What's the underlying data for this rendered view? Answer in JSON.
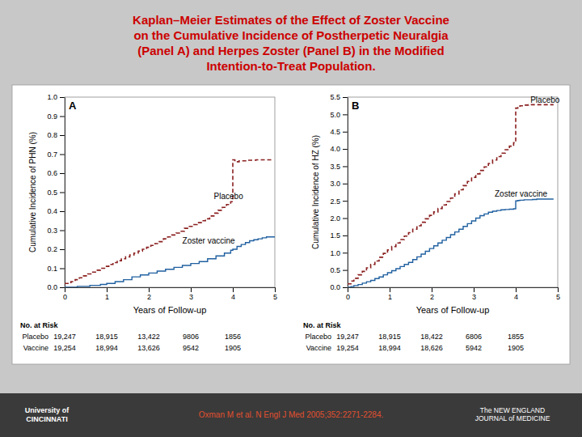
{
  "title": "Kaplan–Meier Estimates of the Effect of Zoster Vaccine\non the Cumulative Incidence of Postherpetic Neuralgia\n(Panel A) and Herpes Zoster (Panel B) in the Modified\nIntention-to-Treat Population.",
  "annotations": [
    {
      "text": "Oxman M et al. N Engl J Med 2005;352:2271-2284."
    },
    {
      "text": "University of\nCINCINNATI"
    },
    {
      "text": "The NEW ENGLAND\nJOURNAL of MEDICINE"
    }
  ],
  "chart_data": [
    {
      "type": "step",
      "xlabel": "Years of Follow-up",
      "ylabel": "Cumulative Incidence of PHN (%)",
      "xlim": [
        0,
        5
      ],
      "xticks": [
        0,
        1,
        2,
        3,
        4,
        5
      ],
      "ylim": [
        0,
        1.0
      ],
      "yticks": [
        {
          "value": 0.0,
          "label": "0.0"
        },
        0.1,
        0.2,
        0.3,
        0.4,
        0.5,
        0.6,
        0.7,
        0.8,
        0.9,
        {
          "value": 1.0,
          "label": "1.0"
        }
      ],
      "grid": false,
      "series": [
        {
          "color": "#8b2020",
          "line_style": "dashed",
          "x": [
            0,
            0.08,
            0.15,
            0.25,
            0.35,
            0.45,
            0.55,
            0.65,
            0.75,
            0.85,
            0.95,
            1.05,
            1.15,
            1.25,
            1.35,
            1.45,
            1.55,
            1.65,
            1.75,
            1.85,
            1.95,
            2.05,
            2.15,
            2.25,
            2.35,
            2.45,
            2.55,
            2.65,
            2.75,
            2.85,
            2.95,
            3.05,
            3.15,
            3.25,
            3.35,
            3.45,
            3.55,
            3.65,
            3.75,
            3.85,
            3.95,
            4.0,
            4.05,
            4.15,
            4.25,
            4.35,
            4.45,
            4.55,
            4.65,
            4.75,
            4.85,
            4.95
          ],
          "values": [
            0.02,
            0.025,
            0.03,
            0.04,
            0.05,
            0.06,
            0.07,
            0.08,
            0.09,
            0.1,
            0.11,
            0.12,
            0.13,
            0.14,
            0.15,
            0.16,
            0.17,
            0.18,
            0.19,
            0.2,
            0.21,
            0.22,
            0.23,
            0.24,
            0.255,
            0.265,
            0.275,
            0.285,
            0.295,
            0.31,
            0.32,
            0.33,
            0.34,
            0.35,
            0.36,
            0.375,
            0.39,
            0.405,
            0.42,
            0.435,
            0.45,
            0.67,
            0.66,
            0.665,
            0.665,
            0.668,
            0.668,
            0.67,
            0.67,
            0.67,
            0.67,
            0.67
          ]
        },
        {
          "color": "#2060a0",
          "line_style": "solid",
          "x": [
            0,
            0.3,
            0.6,
            0.85,
            1.0,
            1.2,
            1.4,
            1.6,
            1.8,
            2.0,
            2.2,
            2.4,
            2.6,
            2.8,
            3.0,
            3.2,
            3.4,
            3.6,
            3.8,
            3.95,
            4.0,
            4.1,
            4.2,
            4.3,
            4.4,
            4.5,
            4.6,
            4.7,
            4.8,
            4.9,
            5.0
          ],
          "values": [
            0.0,
            0.005,
            0.01,
            0.015,
            0.02,
            0.03,
            0.04,
            0.055,
            0.065,
            0.075,
            0.085,
            0.095,
            0.105,
            0.115,
            0.125,
            0.135,
            0.15,
            0.165,
            0.18,
            0.195,
            0.2,
            0.215,
            0.225,
            0.235,
            0.245,
            0.25,
            0.255,
            0.26,
            0.265,
            0.265,
            0.265
          ]
        }
      ],
      "annotations": [
        {
          "text": "A"
        },
        {
          "text": "Placebo",
          "x": 3.55,
          "y": 0.455
        },
        {
          "text": "Zoster vaccine",
          "x": 2.8,
          "y": 0.22
        }
      ],
      "at_risk": {
        "title": "No. at Risk",
        "x": [
          0,
          1,
          2,
          3,
          4
        ],
        "rows": [
          {
            "name": "Placebo",
            "values": [
              19247,
              18915,
              13422,
              9806,
              1856
            ],
            "value_labels": [
              "19,247",
              "18,915",
              "13,422",
              "9806",
              "1856"
            ]
          },
          {
            "name": "Vaccine",
            "values": [
              19254,
              18994,
              13626,
              9542,
              1905
            ],
            "value_labels": [
              "19,254",
              "18,994",
              "13,626",
              "9542",
              "1905"
            ]
          }
        ]
      }
    },
    {
      "type": "step",
      "xlabel": "Years of Follow-up",
      "ylabel": "Cumulative Incidence of HZ (%)",
      "xlim": [
        0,
        5
      ],
      "xticks": [
        0,
        1,
        2,
        3,
        4,
        5
      ],
      "ylim": [
        0,
        5.5
      ],
      "yticks": [
        {
          "value": 0.0,
          "label": "0.0"
        },
        0.5,
        {
          "value": 1.0,
          "label": "1.0"
        },
        1.5,
        {
          "value": 2.0,
          "label": "2.0"
        },
        2.5,
        {
          "value": 3.0,
          "label": "3.0"
        },
        3.5,
        {
          "value": 4.0,
          "label": "4.0"
        },
        4.5,
        {
          "value": 5.0,
          "label": "5.0"
        },
        5.5
      ],
      "grid": false,
      "series": [
        {
          "color": "#8b2020",
          "line_style": "dashed",
          "x": [
            0,
            0.08,
            0.15,
            0.25,
            0.35,
            0.45,
            0.55,
            0.65,
            0.75,
            0.85,
            0.95,
            1.05,
            1.15,
            1.25,
            1.35,
            1.45,
            1.55,
            1.65,
            1.75,
            1.85,
            1.95,
            2.05,
            2.15,
            2.25,
            2.35,
            2.45,
            2.55,
            2.65,
            2.75,
            2.85,
            2.95,
            3.05,
            3.15,
            3.25,
            3.35,
            3.45,
            3.55,
            3.65,
            3.75,
            3.85,
            3.95,
            4.0,
            4.05,
            4.1,
            4.2,
            4.3,
            4.4,
            4.5,
            4.6,
            4.7,
            4.8,
            4.9
          ],
          "values": [
            0.1,
            0.18,
            0.26,
            0.36,
            0.46,
            0.56,
            0.66,
            0.76,
            0.87,
            0.98,
            1.08,
            1.18,
            1.28,
            1.38,
            1.48,
            1.58,
            1.68,
            1.78,
            1.88,
            1.98,
            2.08,
            2.18,
            2.28,
            2.38,
            2.48,
            2.58,
            2.7,
            2.82,
            2.94,
            3.06,
            3.18,
            3.28,
            3.38,
            3.48,
            3.58,
            3.68,
            3.78,
            3.88,
            3.98,
            4.08,
            4.18,
            5.18,
            5.22,
            5.25,
            5.27,
            5.28,
            5.28,
            5.28,
            5.28,
            5.28,
            5.28,
            5.28
          ]
        },
        {
          "color": "#2060a0",
          "line_style": "solid",
          "x": [
            0,
            0.08,
            0.15,
            0.25,
            0.35,
            0.45,
            0.55,
            0.65,
            0.75,
            0.85,
            0.95,
            1.05,
            1.15,
            1.25,
            1.35,
            1.45,
            1.55,
            1.65,
            1.75,
            1.85,
            1.95,
            2.05,
            2.15,
            2.25,
            2.35,
            2.45,
            2.55,
            2.65,
            2.75,
            2.85,
            2.95,
            3.05,
            3.15,
            3.25,
            3.35,
            3.45,
            3.55,
            3.65,
            3.75,
            3.85,
            3.95,
            4.0,
            4.05,
            4.1,
            4.2,
            4.3,
            4.4,
            4.5,
            4.6,
            4.7,
            4.8,
            4.9
          ],
          "values": [
            0.0,
            0.02,
            0.05,
            0.08,
            0.12,
            0.16,
            0.2,
            0.25,
            0.3,
            0.36,
            0.42,
            0.48,
            0.54,
            0.6,
            0.66,
            0.72,
            0.8,
            0.88,
            0.96,
            1.04,
            1.12,
            1.2,
            1.28,
            1.36,
            1.44,
            1.52,
            1.6,
            1.68,
            1.76,
            1.84,
            1.92,
            2.0,
            2.07,
            2.12,
            2.17,
            2.2,
            2.22,
            2.24,
            2.25,
            2.26,
            2.27,
            2.5,
            2.51,
            2.52,
            2.53,
            2.53,
            2.54,
            2.55,
            2.55,
            2.55,
            2.55,
            2.55
          ]
        }
      ],
      "annotations": [
        {
          "text": "B"
        },
        {
          "text": "Placebo",
          "x": 4.35,
          "y": 5.28
        },
        {
          "text": "Zoster vaccine",
          "x": 3.5,
          "y": 2.58
        }
      ],
      "at_risk": {
        "title": "No. at Risk",
        "x": [
          0,
          1,
          2,
          3,
          4
        ],
        "rows": [
          {
            "name": "Placebo",
            "values": [
              19247,
              18915,
              18422,
              6806,
              1855
            ],
            "value_labels": [
              "19,247",
              "18,915",
              "18,422",
              "6806",
              "1855"
            ]
          },
          {
            "name": "Vaccine",
            "values": [
              19254,
              18994,
              18626,
              5942,
              1905
            ],
            "value_labels": [
              "19,254",
              "18,994",
              "18,626",
              "5942",
              "1905"
            ]
          }
        ]
      }
    }
  ]
}
